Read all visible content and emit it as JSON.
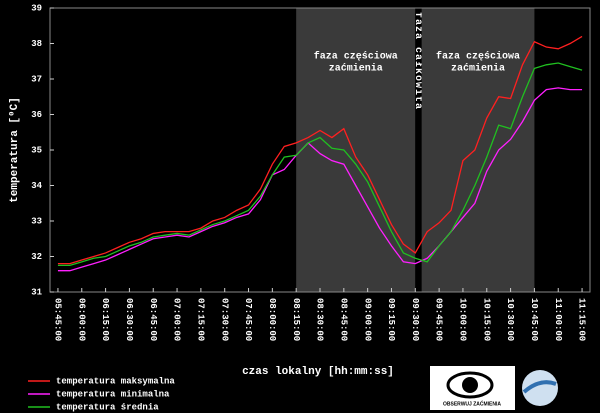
{
  "chart_data": {
    "type": "line",
    "xlabel": "czas lokalny [hh:mm:ss]",
    "ylabel": "temperatura [⁰C]",
    "xlim": [
      "05:40:00",
      "11:20:00"
    ],
    "xticks": [
      "05:45:00",
      "06:00:00",
      "06:15:00",
      "06:30:00",
      "06:45:00",
      "07:00:00",
      "07:15:00",
      "07:30:00",
      "07:45:00",
      "08:00:00",
      "08:15:00",
      "08:30:00",
      "08:45:00",
      "09:00:00",
      "09:15:00",
      "09:30:00",
      "09:45:00",
      "10:00:00",
      "10:15:00",
      "10:30:00",
      "10:45:00",
      "11:00:00",
      "11:15:00"
    ],
    "ylim": [
      31,
      39
    ],
    "yticks": [
      31,
      32,
      33,
      34,
      35,
      36,
      37,
      38,
      39
    ],
    "phases": [
      {
        "label": [
          "faza częściowa",
          "zaćmienia"
        ],
        "start": "08:15:00",
        "end": "09:30:00",
        "color": "#3a3a3a"
      },
      {
        "label": [
          "faza całkowita"
        ],
        "start": "09:30:00",
        "end": "09:34:00",
        "color": "#000000"
      },
      {
        "label": [
          "faza częściowa",
          "zaćmienia"
        ],
        "start": "09:34:00",
        "end": "10:45:00",
        "color": "#3a3a3a"
      }
    ],
    "x": [
      "05:45:00",
      "05:52:30",
      "06:00:00",
      "06:07:30",
      "06:15:00",
      "06:22:30",
      "06:30:00",
      "06:37:30",
      "06:45:00",
      "06:52:30",
      "07:00:00",
      "07:07:30",
      "07:15:00",
      "07:22:30",
      "07:30:00",
      "07:37:30",
      "07:45:00",
      "07:52:30",
      "08:00:00",
      "08:07:30",
      "08:15:00",
      "08:22:30",
      "08:30:00",
      "08:37:30",
      "08:45:00",
      "08:52:30",
      "09:00:00",
      "09:07:30",
      "09:15:00",
      "09:22:30",
      "09:30:00",
      "09:37:30",
      "09:45:00",
      "09:52:30",
      "10:00:00",
      "10:07:30",
      "10:15:00",
      "10:22:30",
      "10:30:00",
      "10:37:30",
      "10:45:00",
      "10:52:30",
      "11:00:00",
      "11:07:30",
      "11:15:00"
    ],
    "series": [
      {
        "name": "temperatura maksymalna",
        "color": "#ff2020",
        "values": [
          31.8,
          31.8,
          31.9,
          32.0,
          32.1,
          32.25,
          32.4,
          32.5,
          32.65,
          32.7,
          32.7,
          32.7,
          32.8,
          33.0,
          33.1,
          33.3,
          33.45,
          33.9,
          34.6,
          35.1,
          35.2,
          35.35,
          35.55,
          35.35,
          35.6,
          34.8,
          34.3,
          33.6,
          32.9,
          32.35,
          32.1,
          32.7,
          32.95,
          33.3,
          34.7,
          35.0,
          35.9,
          36.5,
          36.45,
          37.4,
          38.05,
          37.9,
          37.85,
          38.0,
          38.2
        ]
      },
      {
        "name": "temperatura minimalna",
        "color": "#ff20ff",
        "values": [
          31.6,
          31.6,
          31.7,
          31.8,
          31.9,
          32.05,
          32.2,
          32.35,
          32.5,
          32.55,
          32.6,
          32.55,
          32.7,
          32.85,
          32.95,
          33.1,
          33.2,
          33.6,
          34.3,
          34.45,
          34.85,
          35.2,
          34.9,
          34.7,
          34.6,
          34.0,
          33.4,
          32.8,
          32.3,
          31.85,
          31.8,
          31.95,
          32.3,
          32.7,
          33.1,
          33.5,
          34.4,
          35.0,
          35.3,
          35.8,
          36.4,
          36.7,
          36.75,
          36.7,
          36.7
        ]
      },
      {
        "name": "temperatura średnia",
        "color": "#20c020",
        "values": [
          31.75,
          31.75,
          31.85,
          31.95,
          32.0,
          32.15,
          32.3,
          32.4,
          32.55,
          32.6,
          32.65,
          32.6,
          32.75,
          32.9,
          33.0,
          33.15,
          33.3,
          33.7,
          34.3,
          34.8,
          34.85,
          35.2,
          35.35,
          35.05,
          35.0,
          34.6,
          34.1,
          33.4,
          32.7,
          32.1,
          31.95,
          31.85,
          32.3,
          32.7,
          33.3,
          34.0,
          34.8,
          35.7,
          35.6,
          36.5,
          37.3,
          37.4,
          37.45,
          37.35,
          37.25
        ]
      }
    ],
    "logo_text": "OBSERWUJ ZAĆMIENIA"
  }
}
